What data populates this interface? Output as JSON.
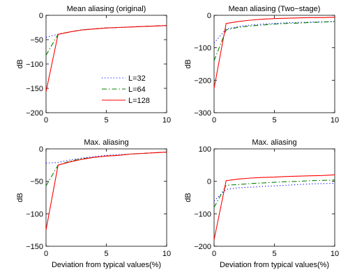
{
  "chart_data": [
    {
      "type": "line",
      "title": "Mean aliasing (original)",
      "xlabel": "",
      "ylabel": "dB",
      "xlim": [
        0,
        10
      ],
      "ylim": [
        -200,
        0
      ],
      "xticks": [
        "0",
        "5",
        "10"
      ],
      "yticks": [
        "−200",
        "−150",
        "−100",
        "−50",
        "0"
      ],
      "ytick_values": [
        -200,
        -150,
        -100,
        -50,
        0
      ],
      "x": [
        0,
        1,
        2,
        3,
        4,
        5,
        6,
        7,
        8,
        9,
        10
      ],
      "legend": {
        "position": "bottom-right"
      },
      "series": [
        {
          "name": "L=32",
          "style": "dotted",
          "color": "#0000ff",
          "values": [
            -45,
            -39,
            -34,
            -30,
            -28,
            -26,
            -25,
            -24,
            -23,
            -22,
            -21
          ]
        },
        {
          "name": "L=64",
          "style": "dashdot",
          "color": "#007f00",
          "values": [
            -82,
            -39,
            -34,
            -30,
            -28,
            -26,
            -25,
            -24,
            -23,
            -22,
            -21
          ]
        },
        {
          "name": "L=128",
          "style": "solid",
          "color": "#ff0000",
          "values": [
            -157,
            -39,
            -34,
            -30,
            -28,
            -26,
            -25,
            -24,
            -23,
            -22,
            -21
          ]
        }
      ]
    },
    {
      "type": "line",
      "title": "Mean aliasing (Two−stage)",
      "xlabel": "",
      "ylabel": "dB",
      "xlim": [
        0,
        10
      ],
      "ylim": [
        -300,
        0
      ],
      "xticks": [
        "0",
        "5",
        "10"
      ],
      "yticks": [
        "−300",
        "−200",
        "−100",
        "0"
      ],
      "ytick_values": [
        -300,
        -200,
        -100,
        0
      ],
      "x": [
        0,
        1,
        2,
        3,
        4,
        5,
        6,
        7,
        8,
        9,
        10
      ],
      "series": [
        {
          "name": "L=32",
          "style": "dotted",
          "color": "#0000ff",
          "values": [
            -85,
            -42,
            -35,
            -30,
            -27,
            -25,
            -23,
            -22,
            -21,
            -20,
            -19
          ]
        },
        {
          "name": "L=64",
          "style": "dashdot",
          "color": "#007f00",
          "values": [
            -140,
            -45,
            -37,
            -33,
            -30,
            -27,
            -25,
            -24,
            -22,
            -21,
            -19
          ]
        },
        {
          "name": "L=128",
          "style": "solid",
          "color": "#ff0000",
          "values": [
            -225,
            -25,
            -19,
            -15,
            -12,
            -10,
            -9,
            -8,
            -7,
            -7,
            -6
          ]
        }
      ]
    },
    {
      "type": "line",
      "title": "Max. aliasing",
      "xlabel": "Deviation from typical values(%)",
      "ylabel": "dB",
      "xlim": [
        0,
        10
      ],
      "ylim": [
        -150,
        0
      ],
      "xticks": [
        "0",
        "5",
        "10"
      ],
      "yticks": [
        "−150",
        "−100",
        "−50",
        "0"
      ],
      "ytick_values": [
        -150,
        -100,
        -50,
        0
      ],
      "x": [
        0,
        1,
        2,
        3,
        4,
        5,
        6,
        7,
        8,
        9,
        10
      ],
      "series": [
        {
          "name": "L=32",
          "style": "dotted",
          "color": "#0000ff",
          "values": [
            -22,
            -21,
            -17,
            -14,
            -12,
            -10,
            -9,
            -8,
            -7,
            -6,
            -5
          ]
        },
        {
          "name": "L=64",
          "style": "dashdot",
          "color": "#007f00",
          "values": [
            -57,
            -25,
            -19,
            -15,
            -13,
            -11,
            -10,
            -8,
            -7,
            -6,
            -5
          ]
        },
        {
          "name": "L=128",
          "style": "solid",
          "color": "#ff0000",
          "values": [
            -125,
            -25,
            -20,
            -16,
            -13,
            -11,
            -10,
            -8,
            -7,
            -6,
            -5
          ]
        }
      ]
    },
    {
      "type": "line",
      "title": "Max. aliasing",
      "xlabel": "Deviation from typical values(%)",
      "ylabel": "dB",
      "xlim": [
        0,
        10
      ],
      "ylim": [
        -200,
        100
      ],
      "xticks": [
        "0",
        "5",
        "10"
      ],
      "yticks": [
        "−200",
        "−100",
        "0",
        "100"
      ],
      "ytick_values": [
        -200,
        -100,
        0,
        100
      ],
      "x": [
        0,
        1,
        2,
        3,
        4,
        5,
        6,
        7,
        8,
        9,
        10
      ],
      "series": [
        {
          "name": "L=32",
          "style": "dotted",
          "color": "#0000ff",
          "values": [
            -60,
            -25,
            -20,
            -18,
            -16,
            -14,
            -12,
            -10,
            -8,
            -7,
            -6
          ]
        },
        {
          "name": "L=64",
          "style": "dashdot",
          "color": "#007f00",
          "values": [
            -80,
            -12,
            -10,
            -7,
            -5,
            -3,
            -1,
            0,
            2,
            3,
            4
          ]
        },
        {
          "name": "L=128",
          "style": "solid",
          "color": "#ff0000",
          "values": [
            -180,
            2,
            7,
            10,
            12,
            13,
            15,
            16,
            17,
            18,
            20
          ]
        }
      ]
    }
  ]
}
